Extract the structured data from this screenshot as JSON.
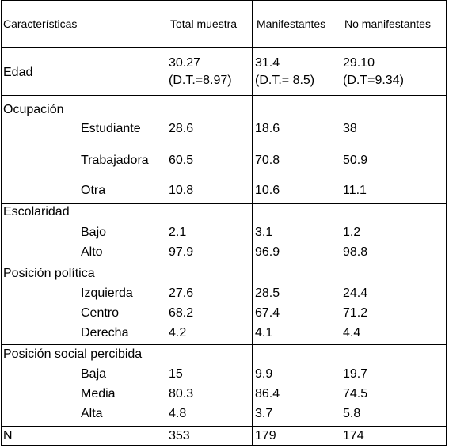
{
  "table": {
    "header": [
      "Características",
      "Total muestra",
      "Manifestantes",
      "No manifestantes"
    ],
    "sections": [
      {
        "label": "Edad",
        "values": [
          [
            "30.27",
            "(D.T.=8.97)"
          ],
          [
            "31.4",
            "(D.T.= 8.5)"
          ],
          [
            "29.10",
            "(D.T=9.34)"
          ]
        ]
      },
      {
        "label": "Ocupación",
        "rows": [
          {
            "label": "Estudiante",
            "values": [
              "28.6",
              "18.6",
              "38"
            ]
          },
          {
            "label": "Trabajadora",
            "values": [
              "60.5",
              "70.8",
              "50.9"
            ]
          },
          {
            "label": "Otra",
            "values": [
              "10.8",
              "10.6",
              "11.1"
            ]
          }
        ]
      },
      {
        "label": "Escolaridad",
        "rows": [
          {
            "label": "Bajo",
            "values": [
              "2.1",
              "3.1",
              "1.2"
            ]
          },
          {
            "label": "Alto",
            "values": [
              "97.9",
              "96.9",
              "98.8"
            ]
          }
        ]
      },
      {
        "label": "Posición política",
        "rows": [
          {
            "label": "Izquierda",
            "values": [
              "27.6",
              "28.5",
              "24.4"
            ]
          },
          {
            "label": "Centro",
            "values": [
              "68.2",
              "67.4",
              "71.2"
            ]
          },
          {
            "label": "Derecha",
            "values": [
              "4.2",
              "4.1",
              "4.4"
            ]
          }
        ]
      },
      {
        "label": "Posición social percibida",
        "rows": [
          {
            "label": "Baja",
            "values": [
              "15",
              "9.9",
              "19.7"
            ]
          },
          {
            "label": "Media",
            "values": [
              "80.3",
              "86.4",
              "74.5"
            ]
          },
          {
            "label": "Alta",
            "values": [
              "4.8",
              "3.7",
              "5.8"
            ]
          }
        ]
      },
      {
        "label": "N",
        "values": [
          "353",
          "179",
          "174"
        ]
      }
    ]
  }
}
